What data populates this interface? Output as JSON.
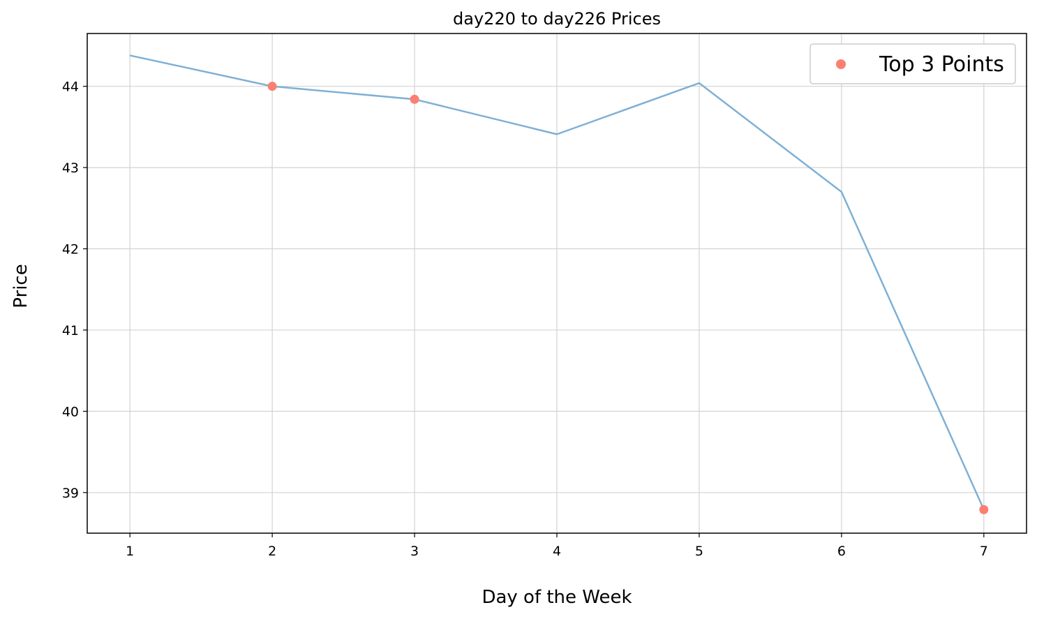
{
  "chart_data": {
    "type": "line",
    "title": "day220 to day226 Prices",
    "xlabel": "Day of the Week",
    "ylabel": "Price",
    "x": [
      1,
      2,
      3,
      4,
      5,
      6,
      7
    ],
    "xlim": [
      0.7,
      7.3
    ],
    "ylim": [
      38.5,
      44.65
    ],
    "xticks": [
      1,
      2,
      3,
      4,
      5,
      6,
      7
    ],
    "yticks": [
      39,
      40,
      41,
      42,
      43,
      44
    ],
    "grid": true,
    "legend_position": "top-right",
    "series": [
      {
        "kind": "line",
        "color": "#7fb0d5",
        "values": [
          44.38,
          44.0,
          43.84,
          43.41,
          44.04,
          42.7,
          38.79
        ]
      },
      {
        "kind": "scatter",
        "name": "Top 3 Points",
        "color": "#fa8072",
        "points": [
          {
            "x": 2,
            "y": 44.0
          },
          {
            "x": 3,
            "y": 43.84
          },
          {
            "x": 7,
            "y": 38.79
          }
        ]
      }
    ]
  }
}
